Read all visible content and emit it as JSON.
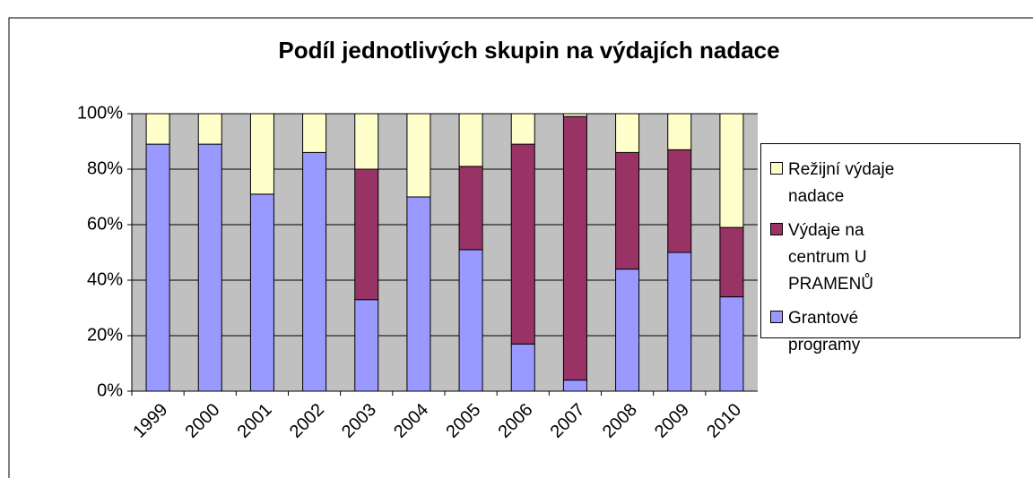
{
  "chart_data": {
    "type": "stacked_bar_percent",
    "title": "Podíl jednotlivých skupin na výdajích nadace",
    "categories": [
      "1999",
      "2000",
      "2001",
      "2002",
      "2003",
      "2004",
      "2005",
      "2006",
      "2007",
      "2008",
      "2009",
      "2010"
    ],
    "series": [
      {
        "name": "Grantové programy",
        "color": "#9999ff",
        "values": [
          89,
          89,
          71,
          86,
          33,
          70,
          51,
          17,
          4,
          44,
          50,
          34
        ]
      },
      {
        "name": "Výdaje na centrum U PRAMENŮ",
        "color": "#993366",
        "values": [
          0,
          0,
          0,
          0,
          47,
          0,
          30,
          72,
          95,
          42,
          37,
          25
        ]
      },
      {
        "name": "Režijní výdaje nadace",
        "color": "#ffffcc",
        "values": [
          11,
          11,
          29,
          14,
          20,
          30,
          19,
          11,
          1,
          14,
          13,
          41
        ]
      }
    ],
    "ylim": [
      0,
      100
    ],
    "yticks": [
      {
        "value": 0,
        "label": "0%"
      },
      {
        "value": 20,
        "label": "20%"
      },
      {
        "value": 40,
        "label": "40%"
      },
      {
        "value": 60,
        "label": "60%"
      },
      {
        "value": 80,
        "label": "80%"
      },
      {
        "value": 100,
        "label": "100%"
      }
    ],
    "grid": true
  }
}
